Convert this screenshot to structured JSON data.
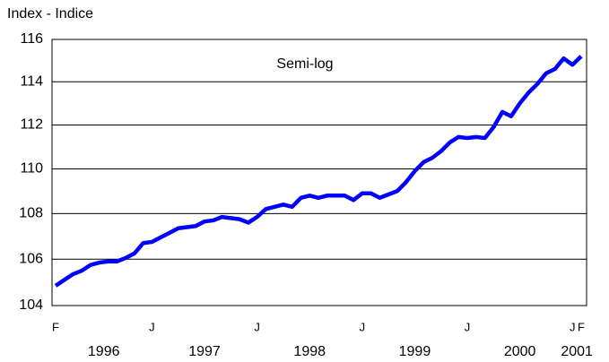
{
  "chart_data": {
    "type": "line",
    "title": "Index - Indice",
    "annotation": "Semi-log",
    "categories": [
      "F",
      null,
      null,
      null,
      null,
      null,
      null,
      null,
      null,
      null,
      null,
      "J",
      null,
      null,
      null,
      null,
      null,
      null,
      null,
      null,
      null,
      null,
      null,
      "J",
      null,
      null,
      null,
      null,
      null,
      null,
      null,
      null,
      null,
      null,
      null,
      "J",
      null,
      null,
      null,
      null,
      null,
      null,
      null,
      null,
      null,
      null,
      null,
      "J",
      null,
      null,
      null,
      null,
      null,
      null,
      null,
      null,
      null,
      null,
      null,
      "J",
      "F"
    ],
    "year_labels": [
      "1996",
      "1997",
      "1998",
      "1999",
      "2000",
      "2001"
    ],
    "series": [
      {
        "name": "Index",
        "color": "#0000ff",
        "values": [
          104.85,
          105.1,
          105.35,
          105.5,
          105.75,
          105.85,
          105.9,
          105.9,
          106.05,
          106.25,
          106.7,
          106.75,
          106.95,
          107.15,
          107.35,
          107.4,
          107.45,
          107.65,
          107.7,
          107.85,
          107.8,
          107.75,
          107.6,
          107.85,
          108.2,
          108.3,
          108.4,
          108.3,
          108.7,
          108.8,
          108.7,
          108.8,
          108.8,
          108.8,
          108.6,
          108.9,
          108.9,
          108.7,
          108.85,
          109.0,
          109.4,
          109.9,
          110.3,
          110.5,
          110.8,
          111.2,
          111.45,
          111.4,
          111.45,
          111.4,
          111.9,
          112.6,
          112.4,
          113.0,
          113.5,
          113.9,
          114.4,
          114.6,
          115.1,
          114.8,
          115.2
        ]
      }
    ],
    "ylim": [
      104,
      116
    ],
    "yticks": [
      104,
      106,
      108,
      110,
      112,
      114,
      116
    ],
    "log_scale": true,
    "grid": true
  }
}
